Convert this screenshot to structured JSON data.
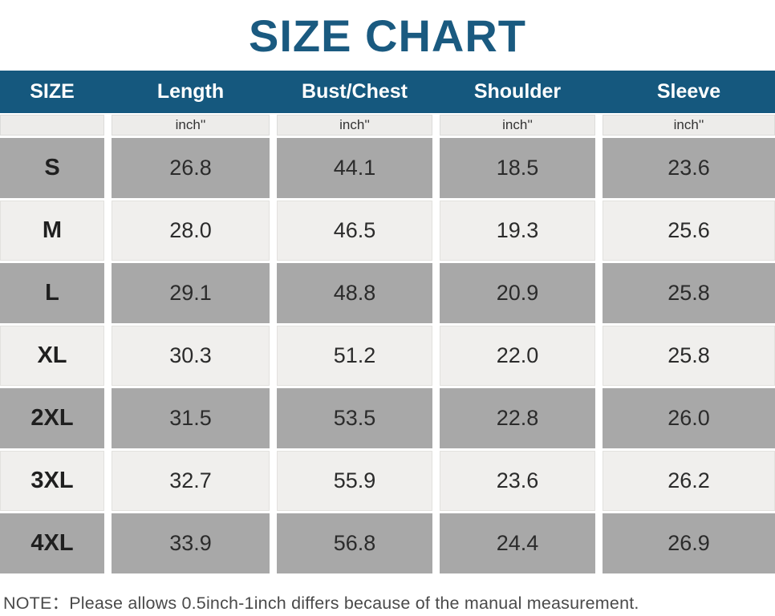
{
  "title": "SIZE CHART",
  "note": "NOTE：Please allows 0.5inch-1inch differs because of the manual measurement.",
  "theme": {
    "header_bg": "#15587E",
    "title_color": "#1A5A80",
    "row_dark_bg": "#A8A8A8",
    "row_light_bg": "#F0EFED",
    "unit_row_bg": "#EDECEA",
    "header_text_color": "#FFFFFF",
    "cell_text_color": "#2B2B2B",
    "note_color": "#4A4A4A"
  },
  "chart_data": {
    "type": "table",
    "title": "SIZE CHART",
    "columns": [
      "SIZE",
      "Length",
      "Bust/Chest",
      "Shoulder",
      "Sleeve"
    ],
    "unit_row": [
      "",
      "inch''",
      "inch''",
      "inch''",
      "inch''"
    ],
    "rows": [
      {
        "size": "S",
        "values": [
          "26.8",
          "44.1",
          "18.5",
          "23.6"
        ]
      },
      {
        "size": "M",
        "values": [
          "28.0",
          "46.5",
          "19.3",
          "25.6"
        ]
      },
      {
        "size": "L",
        "values": [
          "29.1",
          "48.8",
          "20.9",
          "25.8"
        ]
      },
      {
        "size": "XL",
        "values": [
          "30.3",
          "51.2",
          "22.0",
          "25.8"
        ]
      },
      {
        "size": "2XL",
        "values": [
          "31.5",
          "53.5",
          "22.8",
          "26.0"
        ]
      },
      {
        "size": "3XL",
        "values": [
          "32.7",
          "55.9",
          "23.6",
          "26.2"
        ]
      },
      {
        "size": "4XL",
        "values": [
          "33.9",
          "56.8",
          "24.4",
          "26.9"
        ]
      }
    ]
  }
}
